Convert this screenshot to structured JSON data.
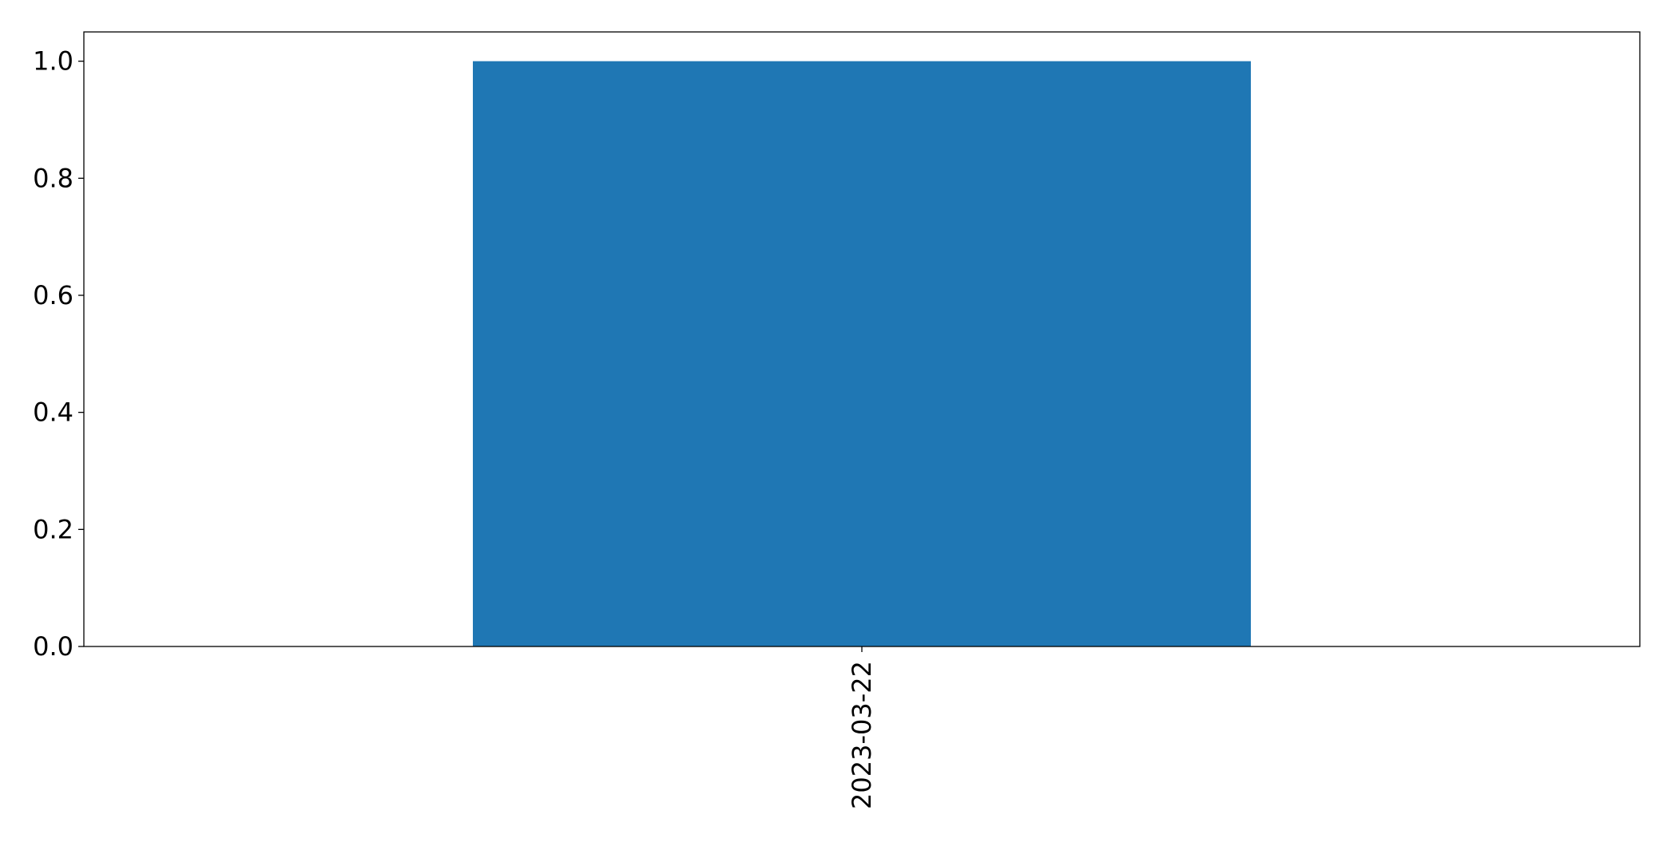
{
  "chart_data": {
    "type": "bar",
    "title": "",
    "xlabel": "",
    "ylabel": "",
    "categories": [
      "2023-03-22"
    ],
    "values": [
      1.0
    ],
    "ylim": [
      0,
      1.05
    ],
    "yticks": [
      "0.0",
      "0.2",
      "0.4",
      "0.6",
      "0.8",
      "1.0"
    ],
    "grid": false,
    "bar_color": "#1f77b4",
    "xtick_rotation": 90
  }
}
